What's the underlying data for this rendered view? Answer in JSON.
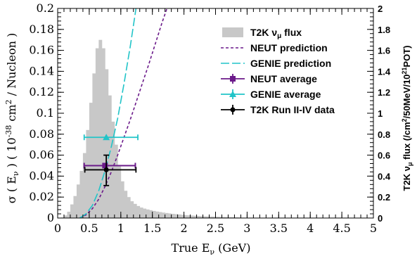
{
  "chart_data": {
    "type": "line",
    "xlabel_main": "True E",
    "xlabel_sub": "ν",
    "xlabel_tail": " (GeV)",
    "ylabel_left": {
      "a": "σ ( E",
      "a_sub": "ν",
      "b": " ) ( 10",
      "b_sup": "-38",
      "c": " cm",
      "c_sup": "2",
      "d": " / Nucleon )"
    },
    "ylabel_right": {
      "a": "T2K ν",
      "a_sub": "μ",
      "b": " flux (/cm",
      "b_sup": "2",
      "c": "/50MeV/10",
      "c_sup": "21",
      "d": "POT)"
    },
    "xlim": [
      0,
      5
    ],
    "ylim_left": [
      0,
      0.2
    ],
    "ylim_right": [
      0,
      2
    ],
    "x_ticks": [
      0,
      0.5,
      1,
      1.5,
      2,
      2.5,
      3,
      3.5,
      4,
      4.5,
      5
    ],
    "x_tick_labels": [
      "0",
      "0.5",
      "1",
      "1.5",
      "2",
      "2.5",
      "3",
      "3.5",
      "4",
      "4.5",
      "5"
    ],
    "y_left_ticks": [
      0,
      0.02,
      0.04,
      0.06,
      0.08,
      0.1,
      0.12,
      0.14,
      0.16,
      0.18,
      0.2
    ],
    "y_left_tick_labels": [
      "0",
      "0.02",
      "0.04",
      "0.06",
      "0.08",
      "0.1",
      "0.12",
      "0.14",
      "0.16",
      "0.18",
      "0.2"
    ],
    "y_right_ticks": [
      0,
      0.2,
      0.4,
      0.6,
      0.8,
      1,
      1.2,
      1.4,
      1.6,
      1.8,
      2
    ],
    "y_right_tick_labels": [
      "0",
      "0.2",
      "0.4",
      "0.6",
      "0.8",
      "1",
      "1.2",
      "1.4",
      "1.6",
      "1.8",
      "2"
    ],
    "legend": {
      "placement": "top-right",
      "entries": [
        {
          "label": "T2K ν",
          "sub": "μ",
          "tail": " flux",
          "style": "fill",
          "color": "#c8c8c8"
        },
        {
          "label": "NEUT prediction",
          "sub": "",
          "tail": "",
          "style": "dashed",
          "color": "#6b1a8a"
        },
        {
          "label": "GENIE prediction",
          "sub": "",
          "tail": "",
          "style": "longdash",
          "color": "#21c4c8"
        },
        {
          "label": "NEUT average",
          "sub": "",
          "tail": "",
          "style": "square",
          "color": "#6b1a8a"
        },
        {
          "label": "GENIE average",
          "sub": "",
          "tail": "",
          "style": "triangle",
          "color": "#21c4c8"
        },
        {
          "label": "T2K Run II-IV data",
          "sub": "",
          "tail": "",
          "style": "circle",
          "color": "#000000"
        }
      ]
    },
    "flux": {
      "bin_width": 0.05,
      "start": 0.0,
      "values": [
        0,
        0.005,
        0.025,
        0.06,
        0.13,
        0.21,
        0.32,
        0.45,
        0.62,
        0.84,
        1.1,
        1.38,
        1.62,
        1.7,
        1.62,
        1.42,
        1.17,
        0.92,
        0.7,
        0.5,
        0.35,
        0.26,
        0.2,
        0.16,
        0.135,
        0.115,
        0.1,
        0.09,
        0.082,
        0.075,
        0.068,
        0.062,
        0.057,
        0.052,
        0.048,
        0.044,
        0.04,
        0.037,
        0.034,
        0.031,
        0.028,
        0.026,
        0.024,
        0.022,
        0.02,
        0.018,
        0.016,
        0.015,
        0.014,
        0.013,
        0.012,
        0.011,
        0.01,
        0.009,
        0.008,
        0.007,
        0.006,
        0.005,
        0.004,
        0.003,
        0.003,
        0.002,
        0.002,
        0.002,
        0.001,
        0.001,
        0.001,
        0.001,
        0,
        0,
        0,
        0,
        0,
        0,
        0,
        0,
        0,
        0,
        0,
        0,
        0,
        0,
        0,
        0,
        0,
        0,
        0,
        0,
        0,
        0,
        0,
        0,
        0,
        0,
        0,
        0,
        0,
        0,
        0,
        0
      ]
    },
    "series": [
      {
        "name": "NEUT prediction",
        "color": "#6b1a8a",
        "x": [
          0.35,
          0.45,
          0.55,
          0.65,
          0.75,
          0.85,
          0.95,
          1.05,
          1.15,
          1.25,
          1.35,
          1.45,
          1.55,
          1.65,
          1.73
        ],
        "y": [
          0.0,
          0.003,
          0.009,
          0.018,
          0.03,
          0.044,
          0.06,
          0.077,
          0.094,
          0.112,
          0.13,
          0.148,
          0.167,
          0.186,
          0.2
        ]
      },
      {
        "name": "GENIE prediction",
        "color": "#21c4c8",
        "x": [
          0.35,
          0.45,
          0.55,
          0.65,
          0.75,
          0.85,
          0.95,
          1.05,
          1.15,
          1.24
        ],
        "y": [
          0.0,
          0.004,
          0.012,
          0.026,
          0.045,
          0.068,
          0.095,
          0.128,
          0.164,
          0.2
        ]
      }
    ],
    "points": [
      {
        "name": "NEUT average",
        "color": "#6b1a8a",
        "marker": "square",
        "x": 0.75,
        "y": 0.05,
        "xerr_low": 0.0,
        "xerr_high": 0.0,
        "yerr_low": 0.0,
        "yerr_high": 0.0
      },
      {
        "name": "GENIE average",
        "color": "#21c4c8",
        "marker": "triangle",
        "x": 0.77,
        "y": 0.077,
        "xerr_low": 0.35,
        "xerr_high": 0.5,
        "yerr_low": 0.0,
        "yerr_high": 0.0
      },
      {
        "name": "T2K Run II-IV data",
        "color": "#000000",
        "marker": "circle",
        "x": 0.77,
        "y": 0.046,
        "xerr_low": 0.34,
        "xerr_high": 0.47,
        "yerr_low": 0.015,
        "yerr_high": 0.014
      }
    ],
    "neut_average_xbar": {
      "x_low": 0.42,
      "x_high": 1.23
    }
  }
}
